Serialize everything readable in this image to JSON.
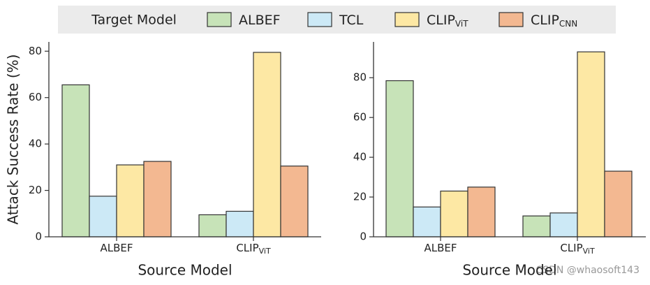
{
  "chart_data": [
    {
      "type": "bar",
      "legend_title": "Target Model",
      "xlabel": "Source Model",
      "ylabel": "Attack Success Rate (%)",
      "categories": [
        "ALBEF",
        "CLIP"
      ],
      "category_subscripts": [
        null,
        "ViT"
      ],
      "series": [
        {
          "name": "ALBEF",
          "name_sub": null,
          "color": "#c7e3b8",
          "values": [
            65.5,
            9.5
          ]
        },
        {
          "name": "TCL",
          "name_sub": null,
          "color": "#cce9f6",
          "values": [
            17.5,
            11
          ]
        },
        {
          "name": "CLIP",
          "name_sub": "ViT",
          "color": "#fde8a4",
          "values": [
            31,
            79.5
          ]
        },
        {
          "name": "CLIP",
          "name_sub": "CNN",
          "color": "#f3b891",
          "values": [
            32.5,
            30.5
          ]
        }
      ],
      "ylim": [
        0,
        84
      ],
      "yticks": [
        0,
        20,
        40,
        60,
        80
      ]
    },
    {
      "type": "bar",
      "xlabel": "Source Model",
      "categories": [
        "ALBEF",
        "CLIP"
      ],
      "category_subscripts": [
        null,
        "ViT"
      ],
      "series": [
        {
          "name": "ALBEF",
          "name_sub": null,
          "color": "#c7e3b8",
          "values": [
            78.5,
            10.5
          ]
        },
        {
          "name": "TCL",
          "name_sub": null,
          "color": "#cce9f6",
          "values": [
            15,
            12
          ]
        },
        {
          "name": "CLIP",
          "name_sub": "ViT",
          "color": "#fde8a4",
          "values": [
            23,
            93
          ]
        },
        {
          "name": "CLIP",
          "name_sub": "CNN",
          "color": "#f3b891",
          "values": [
            25,
            33
          ]
        }
      ],
      "ylim": [
        0,
        98
      ],
      "yticks": [
        0,
        20,
        40,
        60,
        80
      ]
    }
  ],
  "watermark": "CSDN @whaosoft143"
}
